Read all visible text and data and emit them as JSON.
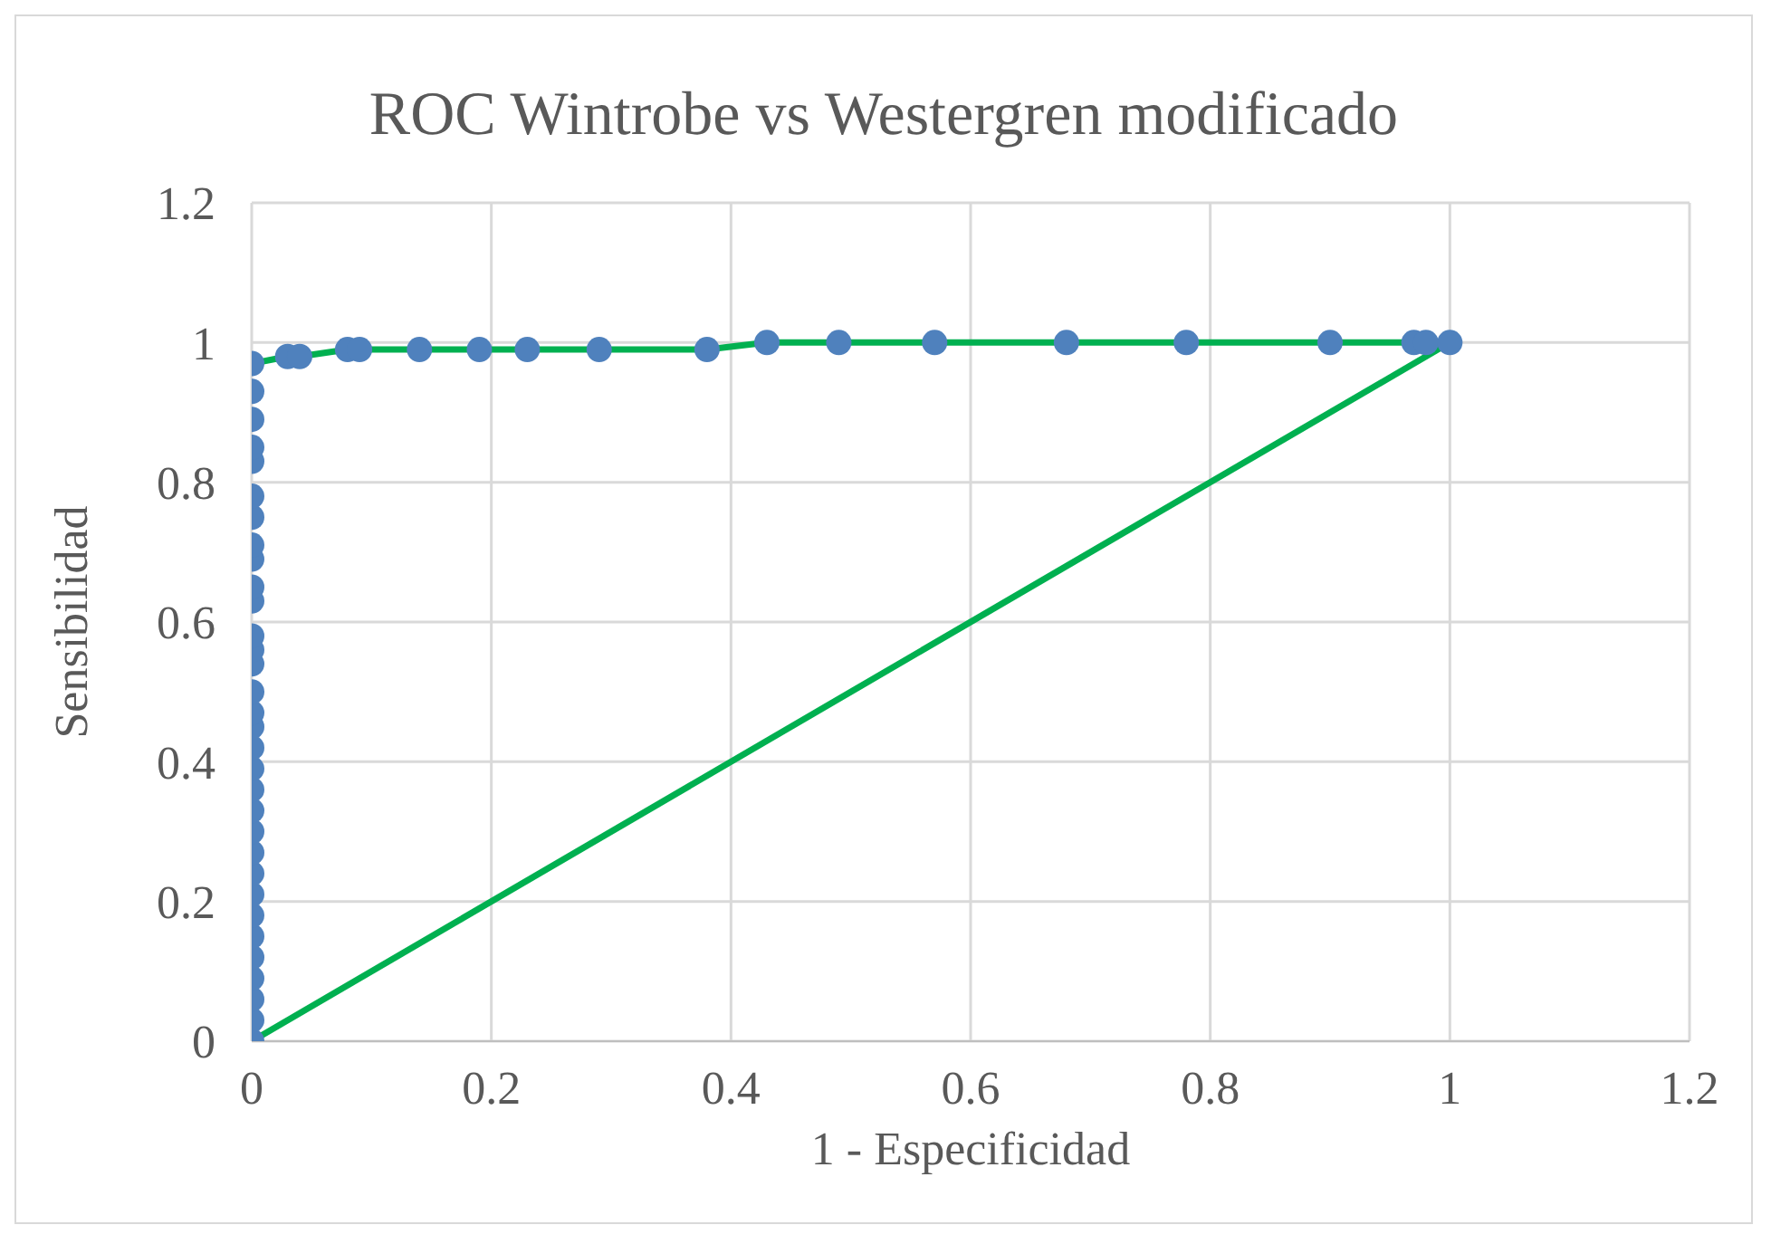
{
  "chart_data": {
    "type": "line",
    "title": "ROC Wintrobe vs Westergren modificado",
    "xlabel": "1 - Especificidad",
    "ylabel": "Sensibilidad",
    "xlim": [
      0,
      1.2
    ],
    "xticks": [
      0,
      0.2,
      0.4,
      0.6,
      0.8,
      1,
      1.2
    ],
    "ylim": [
      0,
      1.2
    ],
    "yticks": [
      0,
      0.2,
      0.4,
      0.6,
      0.8,
      1,
      1.2
    ],
    "grid": true,
    "series": [
      {
        "color": "#00b050",
        "marker": "none",
        "x": [
          0,
          0.03,
          0.04,
          0.08,
          0.09,
          0.14,
          0.19,
          0.23,
          0.29,
          0.38,
          0.43,
          0.49,
          0.57,
          0.68,
          0.78,
          0.9,
          0.97,
          0.98,
          1
        ],
        "values": [
          0.97,
          0.98,
          0.98,
          0.99,
          0.99,
          0.99,
          0.99,
          0.99,
          0.99,
          0.99,
          1,
          1,
          1,
          1,
          1,
          1,
          1,
          1,
          1
        ]
      },
      {
        "type": "scatter",
        "color": "#4f81bd",
        "marker": "circle",
        "x": [
          0,
          0,
          0,
          0,
          0,
          0,
          0,
          0,
          0,
          0,
          0,
          0,
          0,
          0,
          0,
          0,
          0,
          0,
          0,
          0,
          0,
          0,
          0,
          0,
          0,
          0,
          0,
          0,
          0,
          0,
          0,
          0,
          0.03,
          0.04,
          0.08,
          0.09,
          0.14,
          0.19,
          0.23,
          0.29,
          0.38,
          0.43,
          0.49,
          0.57,
          0.68,
          0.78,
          0.9,
          0.97,
          0.98,
          1
        ],
        "values": [
          0,
          0.03,
          0.06,
          0.09,
          0.12,
          0.15,
          0.18,
          0.21,
          0.24,
          0.27,
          0.3,
          0.33,
          0.36,
          0.39,
          0.42,
          0.45,
          0.47,
          0.5,
          0.54,
          0.56,
          0.58,
          0.63,
          0.65,
          0.69,
          0.71,
          0.75,
          0.78,
          0.83,
          0.85,
          0.89,
          0.93,
          0.97,
          0.98,
          0.98,
          0.99,
          0.99,
          0.99,
          0.99,
          0.99,
          0.99,
          0.99,
          1,
          1,
          1,
          1,
          1,
          1,
          1,
          1,
          1
        ]
      },
      {
        "color": "#00b050",
        "marker": "none",
        "x": [
          0,
          1
        ],
        "values": [
          0,
          1
        ]
      }
    ]
  }
}
